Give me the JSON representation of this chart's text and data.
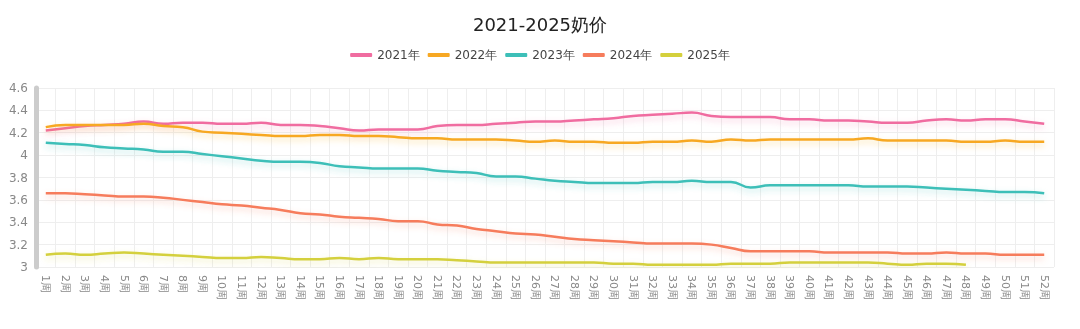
{
  "chart_data": {
    "type": "line",
    "title": "2021-2025奶价",
    "categories": [
      "1周",
      "2周",
      "3周",
      "4周",
      "5周",
      "6周",
      "7周",
      "8周",
      "9周",
      "10周",
      "11周",
      "12周",
      "13周",
      "14周",
      "15周",
      "16周",
      "17周",
      "18周",
      "19周",
      "20周",
      "21周",
      "22周",
      "23周",
      "24周",
      "25周",
      "26周",
      "27周",
      "28周",
      "29周",
      "30周",
      "31周",
      "32周",
      "33周",
      "34周",
      "35周",
      "36周",
      "37周",
      "38周",
      "39周",
      "40周",
      "41周",
      "42周",
      "43周",
      "44周",
      "45周",
      "46周",
      "47周",
      "48周",
      "49周",
      "50周",
      "51周",
      "52周"
    ],
    "series": [
      {
        "name": "2021年",
        "color": "#f06ca0",
        "values": [
          4.22,
          4.24,
          4.26,
          4.27,
          4.28,
          4.3,
          4.28,
          4.29,
          4.29,
          4.28,
          4.28,
          4.29,
          4.27,
          4.27,
          4.26,
          4.24,
          4.22,
          4.23,
          4.23,
          4.23,
          4.26,
          4.27,
          4.27,
          4.28,
          4.29,
          4.3,
          4.3,
          4.31,
          4.32,
          4.33,
          4.35,
          4.36,
          4.37,
          4.38,
          4.35,
          4.34,
          4.34,
          4.34,
          4.32,
          4.32,
          4.31,
          4.31,
          4.3,
          4.29,
          4.29,
          4.31,
          4.32,
          4.31,
          4.32,
          4.32,
          4.3,
          4.28
        ]
      },
      {
        "name": "2022年",
        "color": "#f7a823",
        "values": [
          4.25,
          4.27,
          4.27,
          4.27,
          4.27,
          4.28,
          4.26,
          4.25,
          4.21,
          4.2,
          4.19,
          4.18,
          4.17,
          4.17,
          4.18,
          4.18,
          4.17,
          4.17,
          4.16,
          4.15,
          4.15,
          4.14,
          4.14,
          4.14,
          4.13,
          4.12,
          4.13,
          4.12,
          4.12,
          4.11,
          4.11,
          4.12,
          4.12,
          4.13,
          4.12,
          4.14,
          4.13,
          4.14,
          4.14,
          4.14,
          4.14,
          4.14,
          4.15,
          4.13,
          4.13,
          4.13,
          4.13,
          4.12,
          4.12,
          4.13,
          4.12,
          4.12
        ]
      },
      {
        "name": "2023年",
        "color": "#3dbfb8",
        "values": [
          4.11,
          4.1,
          4.09,
          4.07,
          4.06,
          4.05,
          4.03,
          4.03,
          4.01,
          3.99,
          3.97,
          3.95,
          3.94,
          3.94,
          3.93,
          3.9,
          3.89,
          3.88,
          3.88,
          3.88,
          3.86,
          3.85,
          3.84,
          3.81,
          3.81,
          3.79,
          3.77,
          3.76,
          3.75,
          3.75,
          3.75,
          3.76,
          3.76,
          3.77,
          3.76,
          3.76,
          3.71,
          3.73,
          3.73,
          3.73,
          3.73,
          3.73,
          3.72,
          3.72,
          3.72,
          3.71,
          3.7,
          3.69,
          3.68,
          3.67,
          3.67,
          3.66
        ]
      },
      {
        "name": "2024年",
        "color": "#f67c5c",
        "values": [
          3.66,
          3.66,
          3.65,
          3.64,
          3.63,
          3.63,
          3.62,
          3.6,
          3.58,
          3.56,
          3.55,
          3.53,
          3.51,
          3.48,
          3.47,
          3.45,
          3.44,
          3.43,
          3.41,
          3.41,
          3.38,
          3.37,
          3.34,
          3.32,
          3.3,
          3.29,
          3.27,
          3.25,
          3.24,
          3.23,
          3.22,
          3.21,
          3.21,
          3.21,
          3.2,
          3.17,
          3.14,
          3.14,
          3.14,
          3.14,
          3.13,
          3.13,
          3.13,
          3.13,
          3.12,
          3.12,
          3.13,
          3.12,
          3.12,
          3.11,
          3.11,
          3.11
        ]
      },
      {
        "name": "2025年",
        "color": "#d4d03c",
        "values": [
          3.11,
          3.12,
          3.11,
          3.12,
          3.13,
          3.12,
          3.11,
          3.1,
          3.09,
          3.08,
          3.08,
          3.09,
          3.08,
          3.07,
          3.07,
          3.08,
          3.07,
          3.08,
          3.07,
          3.07,
          3.07,
          3.06,
          3.05,
          3.04,
          3.04,
          3.04,
          3.04,
          3.04,
          3.04,
          3.03,
          3.03,
          3.02,
          3.02,
          3.02,
          3.02,
          3.03,
          3.03,
          3.03,
          3.04,
          3.04,
          3.04,
          3.04,
          3.04,
          3.03,
          3.02,
          3.03,
          3.03,
          3.02,
          null,
          null,
          null,
          null
        ]
      }
    ],
    "ylim": [
      3,
      4.6
    ],
    "yticks": [
      3,
      3.2,
      3.4,
      3.6,
      3.8,
      4,
      4.2,
      4.4,
      4.6
    ],
    "grid": true,
    "legend": "top",
    "marker": "none",
    "line_style": "solid"
  }
}
